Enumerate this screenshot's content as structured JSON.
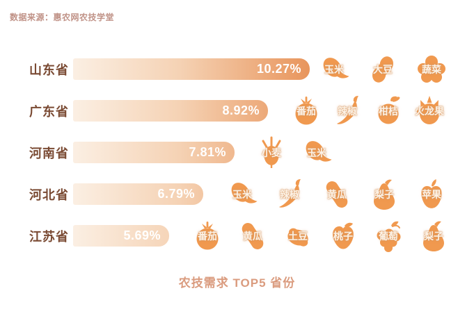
{
  "source_note": "数据来源：惠农网农技学堂",
  "chart_data": {
    "type": "bar",
    "orientation": "horizontal",
    "title": "农技需求 TOP5 省份",
    "unit": "%",
    "legend": "none",
    "grid": false,
    "rows": [
      {
        "province": "山东省",
        "value": 10.27,
        "value_label": "10.27%",
        "crops": [
          {
            "label": "玉米",
            "icon": "corn"
          },
          {
            "label": "大豆",
            "icon": "soybean"
          },
          {
            "label": "蔬菜",
            "icon": "vegetable"
          }
        ]
      },
      {
        "province": "广东省",
        "value": 8.92,
        "value_label": "8.92%",
        "crops": [
          {
            "label": "番茄",
            "icon": "tomato"
          },
          {
            "label": "辣椒",
            "icon": "chili"
          },
          {
            "label": "柑桔",
            "icon": "citrus"
          },
          {
            "label": "火龙果",
            "icon": "dragonfruit"
          }
        ]
      },
      {
        "province": "河南省",
        "value": 7.81,
        "value_label": "7.81%",
        "crops": [
          {
            "label": "小麦",
            "icon": "wheat"
          },
          {
            "label": "玉米",
            "icon": "corn"
          }
        ]
      },
      {
        "province": "河北省",
        "value": 6.79,
        "value_label": "6.79%",
        "crops": [
          {
            "label": "玉米",
            "icon": "corn"
          },
          {
            "label": "辣椒",
            "icon": "chili"
          },
          {
            "label": "黄瓜",
            "icon": "cucumber"
          },
          {
            "label": "梨子",
            "icon": "pear"
          },
          {
            "label": "苹果",
            "icon": "apple"
          }
        ]
      },
      {
        "province": "江苏省",
        "value": 5.69,
        "value_label": "5.69%",
        "crops": [
          {
            "label": "番茄",
            "icon": "tomato"
          },
          {
            "label": "黄瓜",
            "icon": "cucumber"
          },
          {
            "label": "土豆",
            "icon": "potato"
          },
          {
            "label": "桃子",
            "icon": "peach"
          },
          {
            "label": "葡萄",
            "icon": "grape"
          },
          {
            "label": "梨子",
            "icon": "pear"
          }
        ]
      }
    ],
    "colors": {
      "bar_gradient_start": "#FBEFE3",
      "bar_gradient_end": "#E8955C",
      "icon_orange": "#F0994F",
      "province_text": "#7A4A33",
      "value_text": "#FFFFFF",
      "title_text": "#DA9B7E",
      "source_text": "#C09287"
    }
  }
}
